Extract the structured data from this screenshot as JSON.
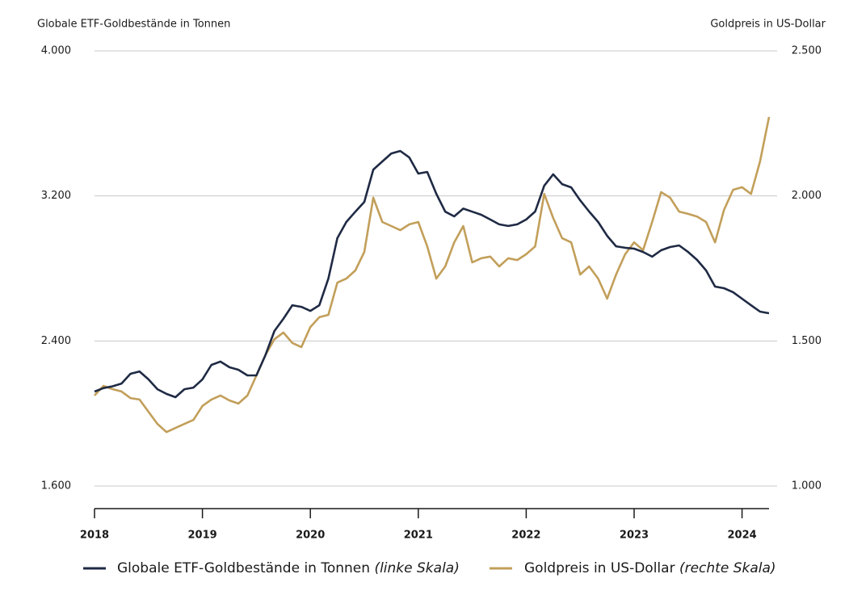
{
  "chart_data": {
    "type": "line",
    "ylabel": "Globale ETF-Goldbestände in Tonnen",
    "y2label": "Goldpreis in US-Dollar",
    "x": [
      2018,
      2018.083,
      2018.167,
      2018.25,
      2018.333,
      2018.417,
      2018.5,
      2018.583,
      2018.667,
      2018.75,
      2018.833,
      2018.917,
      2019,
      2019.083,
      2019.167,
      2019.25,
      2019.333,
      2019.417,
      2019.5,
      2019.583,
      2019.667,
      2019.75,
      2019.833,
      2019.917,
      2020,
      2020.083,
      2020.167,
      2020.25,
      2020.333,
      2020.417,
      2020.5,
      2020.583,
      2020.667,
      2020.75,
      2020.833,
      2020.917,
      2021,
      2021.083,
      2021.167,
      2021.25,
      2021.333,
      2021.417,
      2021.5,
      2021.583,
      2021.667,
      2021.75,
      2021.833,
      2021.917,
      2022,
      2022.083,
      2022.167,
      2022.25,
      2022.333,
      2022.417,
      2022.5,
      2022.583,
      2022.667,
      2022.75,
      2022.833,
      2022.917,
      2023,
      2023.083,
      2023.167,
      2023.25,
      2023.333,
      2023.417,
      2023.5,
      2023.583,
      2023.667,
      2023.75,
      2023.833,
      2023.917,
      2024,
      2024.083,
      2024.167,
      2024.25
    ],
    "series": [
      {
        "name": "Globale ETF-Goldbestände in Tonnen",
        "note": "(linke Skala)",
        "color": "#1f2a44",
        "values": [
          2121,
          2140,
          2150,
          2165,
          2219,
          2232,
          2188,
          2134,
          2108,
          2090,
          2134,
          2143,
          2188,
          2268,
          2286,
          2255,
          2241,
          2210,
          2210,
          2321,
          2455,
          2522,
          2597,
          2588,
          2566,
          2597,
          2744,
          2967,
          3056,
          3113,
          3167,
          3345,
          3390,
          3434,
          3448,
          3412,
          3323,
          3332,
          3212,
          3113,
          3087,
          3130,
          3113,
          3096,
          3070,
          3043,
          3034,
          3043,
          3070,
          3114,
          3256,
          3319,
          3265,
          3247,
          3176,
          3114,
          3056,
          2980,
          2922,
          2914,
          2909,
          2891,
          2865,
          2900,
          2918,
          2927,
          2891,
          2847,
          2789,
          2700,
          2691,
          2669,
          2633,
          2597,
          2562,
          2553
        ]
      },
      {
        "name": "Goldpreis in US-Dollar",
        "note": "(rechte Skala)",
        "color": "#c29f5a",
        "axis": "y2",
        "values": [
          1312,
          1345,
          1334,
          1326,
          1303,
          1298,
          1256,
          1214,
          1186,
          1200,
          1214,
          1228,
          1276,
          1298,
          1312,
          1295,
          1284,
          1312,
          1381,
          1451,
          1506,
          1529,
          1493,
          1479,
          1548,
          1582,
          1590,
          1701,
          1715,
          1743,
          1807,
          1994,
          1910,
          1896,
          1882,
          1902,
          1910,
          1826,
          1715,
          1757,
          1840,
          1896,
          1771,
          1785,
          1791,
          1757,
          1785,
          1779,
          1799,
          1826,
          2007,
          1924,
          1854,
          1840,
          1729,
          1757,
          1715,
          1646,
          1729,
          1799,
          1840,
          1813,
          1910,
          2013,
          1994,
          1946,
          1938,
          1929,
          1910,
          1840,
          1952,
          2021,
          2030,
          2007,
          2119,
          2272
        ]
      }
    ],
    "xlim": [
      2018,
      2024.25
    ],
    "xticks": [
      2018,
      2019,
      2020,
      2021,
      2022,
      2023,
      2024
    ],
    "ylim": [
      1600,
      4000
    ],
    "yticks": [
      {
        "value": 1600,
        "label": "1.600"
      },
      {
        "value": 2400,
        "label": "2.400"
      },
      {
        "value": 3200,
        "label": "3.200"
      },
      {
        "value": 4000,
        "label": "4.000"
      }
    ],
    "y2lim": [
      1000,
      2500
    ],
    "y2ticks": [
      {
        "value": 1000,
        "label": "1.000"
      },
      {
        "value": 1500,
        "label": "1.500"
      },
      {
        "value": 2000,
        "label": "2.000"
      },
      {
        "value": 2500,
        "label": "2.500"
      }
    ],
    "grid": true,
    "legend": "bottom"
  }
}
